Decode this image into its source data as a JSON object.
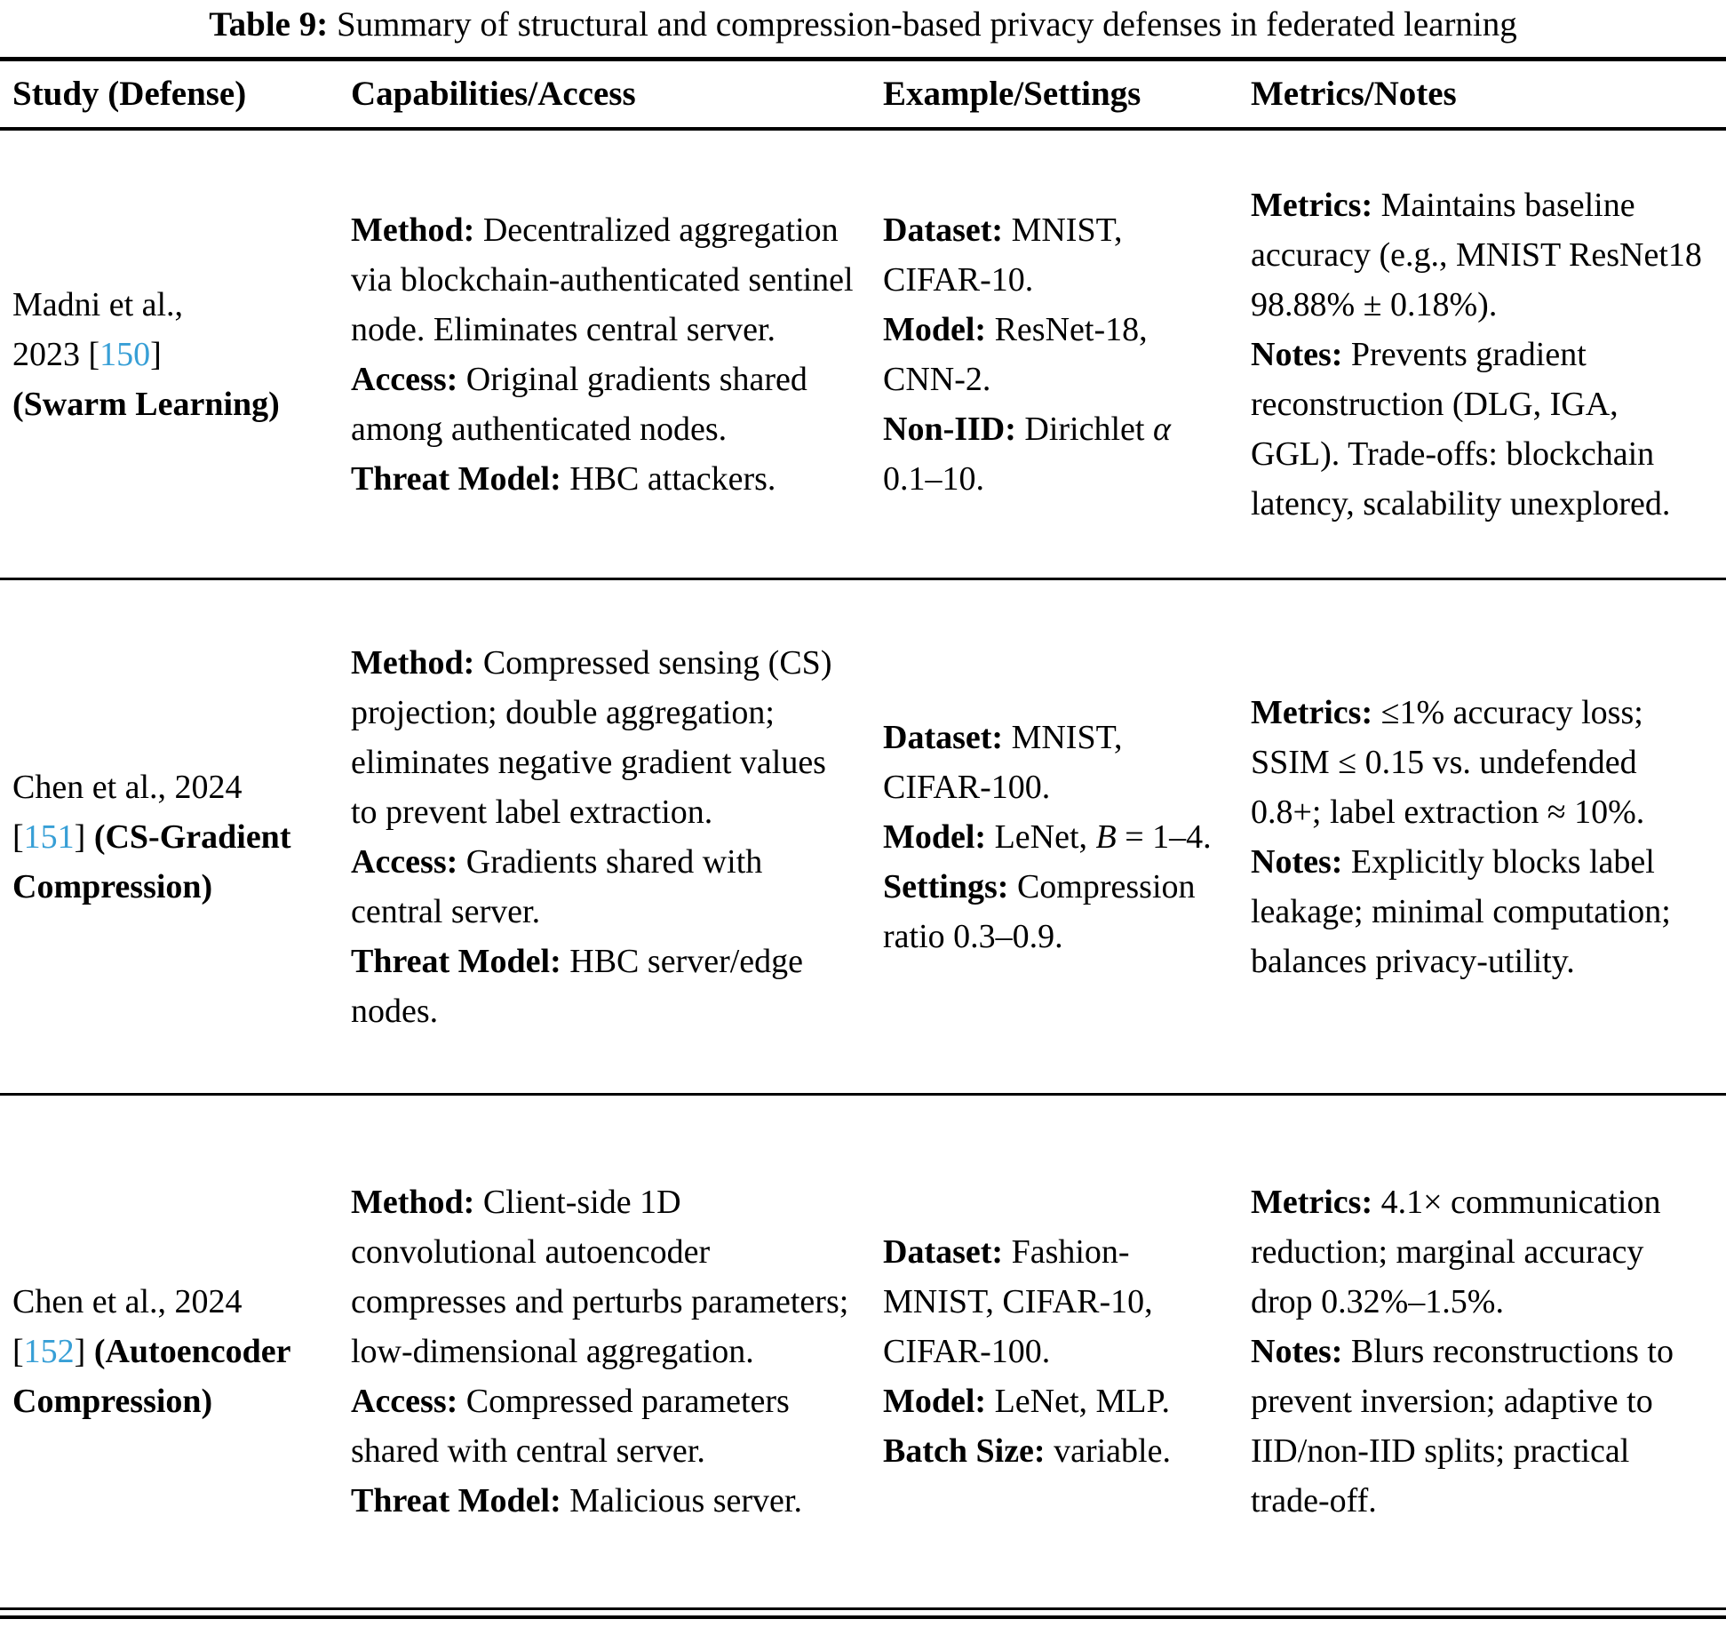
{
  "ref_color": "#379FD6",
  "title": {
    "bold": "Table 9:",
    "rest": " Summary of structural and compression-based privacy defenses in federated learning"
  },
  "header": {
    "study": "Study (Defense)",
    "capabilities": "Capabilities/Access",
    "example": "Example/Settings",
    "metrics": "Metrics/Notes"
  },
  "rows": [
    {
      "study": {
        "authors": "Madni et al., 2023 ",
        "bracket_open": "[",
        "ref": "150",
        "bracket_close": "] ",
        "defense": "(Swarm Learning)"
      },
      "capabilities": [
        {
          "label": "Method:",
          "pre": " Decentralized aggregation via blockchain-authenticated sentinel node. Eliminates central server."
        },
        {
          "label": "Access:",
          "pre": " Original gradients shared among authenticated nodes."
        },
        {
          "label": "Threat Model:",
          "pre": " HBC attackers."
        }
      ],
      "example": [
        {
          "label": "Dataset:",
          "pre": " MNIST, CIFAR-10."
        },
        {
          "label": "Model:",
          "pre": " ResNet-18, CNN-2."
        },
        {
          "label": "Non-IID:",
          "pre": " Dirichlet ",
          "math": "α",
          "post": " 0.1–10."
        }
      ],
      "metrics": [
        {
          "label": "Metrics:",
          "pre": " Maintains baseline accuracy (e.g., MNIST ResNet18 98.88% ± 0.18%)."
        },
        {
          "label": "Notes:",
          "pre": " Prevents gradient reconstruction (DLG, IGA, GGL). Trade-offs: blockchain latency, scalability unexplored."
        }
      ]
    },
    {
      "study": {
        "authors": "Chen et al., 2024 ",
        "bracket_open": "[",
        "ref": "151",
        "bracket_close": "] ",
        "defense": "(CS-Gradient Compression)"
      },
      "capabilities": [
        {
          "label": "Method:",
          "pre": " Compressed sensing (CS) projection; double aggregation; eliminates negative gradient values to prevent label extraction."
        },
        {
          "label": "Access:",
          "pre": " Gradients shared with central server."
        },
        {
          "label": "Threat Model:",
          "pre": " HBC server/edge nodes."
        }
      ],
      "example": [
        {
          "label": "Dataset:",
          "pre": " MNIST, CIFAR-100."
        },
        {
          "label": "Model:",
          "pre": " LeNet, ",
          "math": "B",
          "post": " = 1–4."
        },
        {
          "label": "Settings:",
          "pre": " Compression ratio 0.3–0.9."
        }
      ],
      "metrics": [
        {
          "label": "Metrics:",
          "pre": " ≤1% accuracy loss; SSIM ≤ 0.15 vs. undefended 0.8+; label extraction ≈ 10%."
        },
        {
          "label": "Notes:",
          "pre": " Explicitly blocks label leakage; minimal computation; balances privacy-utility."
        }
      ]
    },
    {
      "study": {
        "authors": "Chen et al., 2024 ",
        "bracket_open": "[",
        "ref": "152",
        "bracket_close": "] ",
        "defense": "(Autoencoder Compression)"
      },
      "capabilities": [
        {
          "label": "Method:",
          "pre": " Client-side 1D convolutional autoencoder compresses and perturbs parameters; low-dimensional aggregation."
        },
        {
          "label": "Access:",
          "pre": " Compressed parameters shared with central server."
        },
        {
          "label": "Threat Model:",
          "pre": " Malicious server."
        }
      ],
      "example": [
        {
          "label": "Dataset:",
          "pre": " Fashion-MNIST, CIFAR-10, CIFAR-100."
        },
        {
          "label": "Model:",
          "pre": " LeNet, MLP."
        },
        {
          "label": "Batch Size:",
          "pre": " variable."
        }
      ],
      "metrics": [
        {
          "label": "Metrics:",
          "pre": " 4.1× communication reduction; marginal accuracy drop 0.32%–1.5%."
        },
        {
          "label": "Notes:",
          "pre": " Blurs reconstructions to prevent inversion; adaptive to IID/non-IID splits; practical trade-off."
        }
      ]
    }
  ]
}
